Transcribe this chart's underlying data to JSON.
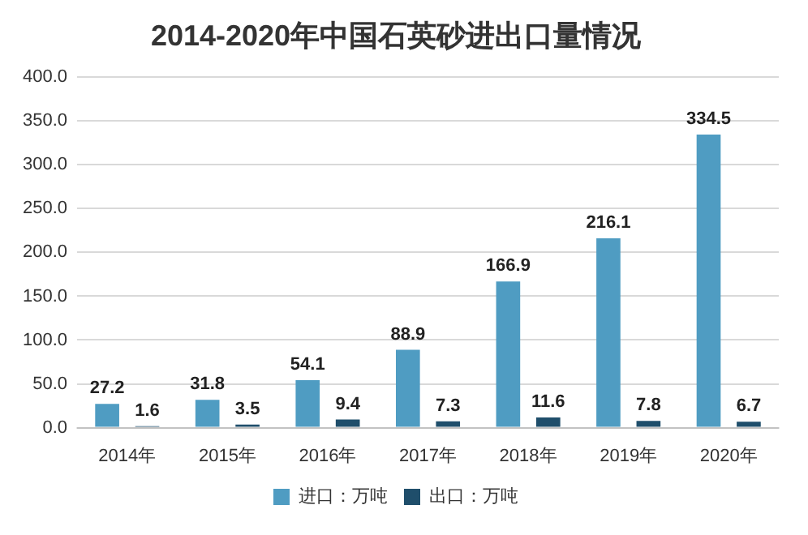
{
  "chart_data": {
    "type": "bar",
    "title": "2014-2020年中国石英砂进出口量情况",
    "categories": [
      "2014年",
      "2015年",
      "2016年",
      "2017年",
      "2018年",
      "2019年",
      "2020年"
    ],
    "series": [
      {
        "name": "进口：万吨",
        "color": "#4f9cc2",
        "values": [
          27.2,
          31.8,
          54.1,
          88.9,
          166.9,
          216.1,
          334.5
        ]
      },
      {
        "name": "出口：万吨",
        "color": "#1f4e6b",
        "values": [
          1.6,
          3.5,
          9.4,
          7.3,
          11.6,
          7.8,
          6.7
        ]
      }
    ],
    "ylim": [
      0,
      400
    ],
    "yticks": [
      {
        "value": 0,
        "label": "0.0"
      },
      {
        "value": 50,
        "label": "50.0"
      },
      {
        "value": 100,
        "label": "100.0"
      },
      {
        "value": 150,
        "label": "150.0"
      },
      {
        "value": 200,
        "label": "200.0"
      },
      {
        "value": 250,
        "label": "250.0"
      },
      {
        "value": 300,
        "label": "300.0"
      },
      {
        "value": 350,
        "label": "350.0"
      },
      {
        "value": 400,
        "label": "400.0"
      }
    ],
    "grid": "y",
    "legend": "bottom",
    "data_labels": true
  }
}
